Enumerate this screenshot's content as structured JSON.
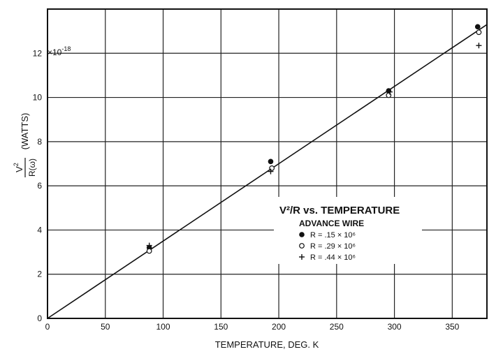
{
  "chart_data": {
    "type": "scatter",
    "title": "",
    "xlabel": "TEMPERATURE, DEG. K",
    "ylabel_parts": {
      "numerator": "V",
      "superscript": "2",
      "denominator": "R(ω)",
      "unit": "(WATTS)"
    },
    "y_multiplier": "×10",
    "y_multiplier_exp": "-18",
    "xlim": [
      0,
      380
    ],
    "ylim": [
      0,
      14
    ],
    "x_ticks": [
      0,
      50,
      100,
      150,
      200,
      250,
      300,
      350
    ],
    "y_ticks": [
      0,
      2,
      4,
      6,
      8,
      10,
      12
    ],
    "x_gridlines": [
      0,
      50,
      100,
      150,
      200,
      250,
      300,
      350
    ],
    "y_gridlines": [
      2,
      4,
      6,
      8,
      10,
      12
    ],
    "grid": true,
    "fit_line": {
      "x": [
        0,
        380
      ],
      "y": [
        0,
        13.3
      ]
    },
    "legend": {
      "placement": "center-right",
      "title_main": "V²/R vs. TEMPERATURE",
      "subtitle": "ADVANCE WIRE"
    },
    "series": [
      {
        "name": "R = .15 × 10⁶",
        "marker": "filled-circle",
        "x": [
          88,
          193,
          295,
          372
        ],
        "y": [
          3.2,
          7.1,
          10.3,
          13.2
        ]
      },
      {
        "name": "R = .29 × 10⁶",
        "marker": "open-circle",
        "x": [
          88,
          194,
          295,
          373
        ],
        "y": [
          3.05,
          6.8,
          10.1,
          12.95
        ]
      },
      {
        "name": "R = .44 × 10⁶",
        "marker": "plus",
        "x": [
          88,
          193,
          296,
          373
        ],
        "y": [
          3.3,
          6.65,
          10.25,
          12.35
        ]
      }
    ]
  }
}
